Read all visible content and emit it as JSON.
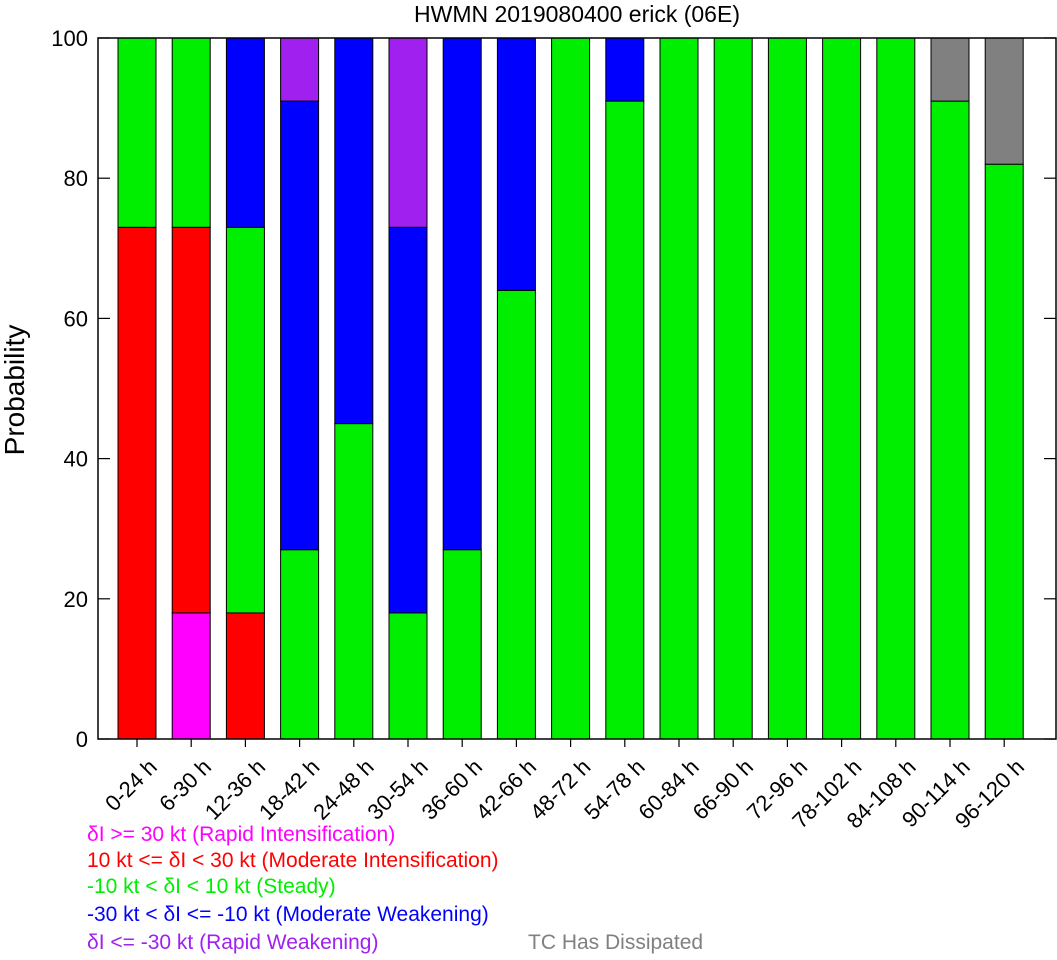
{
  "chart_data": {
    "type": "bar",
    "stacked": true,
    "title": "HWMN 2019080400 erick (06E)",
    "xlabel": "",
    "ylabel": "Probability",
    "ylim": [
      0,
      100
    ],
    "yticks": [
      0,
      20,
      40,
      60,
      80,
      100
    ],
    "grid": false,
    "legend_position": "bottom",
    "categories": [
      "0-24 h",
      "6-30 h",
      "12-36 h",
      "18-42 h",
      "24-48 h",
      "30-54 h",
      "36-60 h",
      "42-66 h",
      "48-72 h",
      "54-78 h",
      "60-84 h",
      "66-90 h",
      "72-96 h",
      "78-102 h",
      "84-108 h",
      "90-114 h",
      "96-120 h"
    ],
    "series": [
      {
        "name": "δI >= 30 kt (Rapid Intensification)",
        "color": "#ff00ff",
        "values": [
          0,
          18,
          0,
          0,
          0,
          0,
          0,
          0,
          0,
          0,
          0,
          0,
          0,
          0,
          0,
          0,
          0
        ]
      },
      {
        "name": "10 kt <= δI < 30 kt (Moderate Intensification)",
        "color": "#ff0000",
        "values": [
          73,
          55,
          18,
          0,
          0,
          0,
          0,
          0,
          0,
          0,
          0,
          0,
          0,
          0,
          0,
          0,
          0
        ]
      },
      {
        "name": "-10 kt < δI < 10 kt (Steady)",
        "color": "#00ee00",
        "values": [
          27,
          27,
          55,
          27,
          45,
          18,
          27,
          64,
          100,
          91,
          100,
          100,
          100,
          100,
          100,
          91,
          82
        ]
      },
      {
        "name": "-30 kt < δI <= -10 kt (Moderate Weakening)",
        "color": "#0000ff",
        "values": [
          0,
          0,
          27,
          64,
          55,
          55,
          73,
          36,
          0,
          9,
          0,
          0,
          0,
          0,
          0,
          0,
          0
        ]
      },
      {
        "name": "δI <= -30 kt (Rapid Weakening)",
        "color": "#a020f0",
        "values": [
          0,
          0,
          0,
          9,
          0,
          27,
          0,
          0,
          0,
          0,
          0,
          0,
          0,
          0,
          0,
          0,
          0
        ]
      },
      {
        "name": "TC Has Dissipated",
        "color": "#808080",
        "values": [
          0,
          0,
          0,
          0,
          0,
          0,
          0,
          0,
          0,
          0,
          0,
          0,
          0,
          0,
          0,
          9,
          18
        ]
      }
    ]
  }
}
